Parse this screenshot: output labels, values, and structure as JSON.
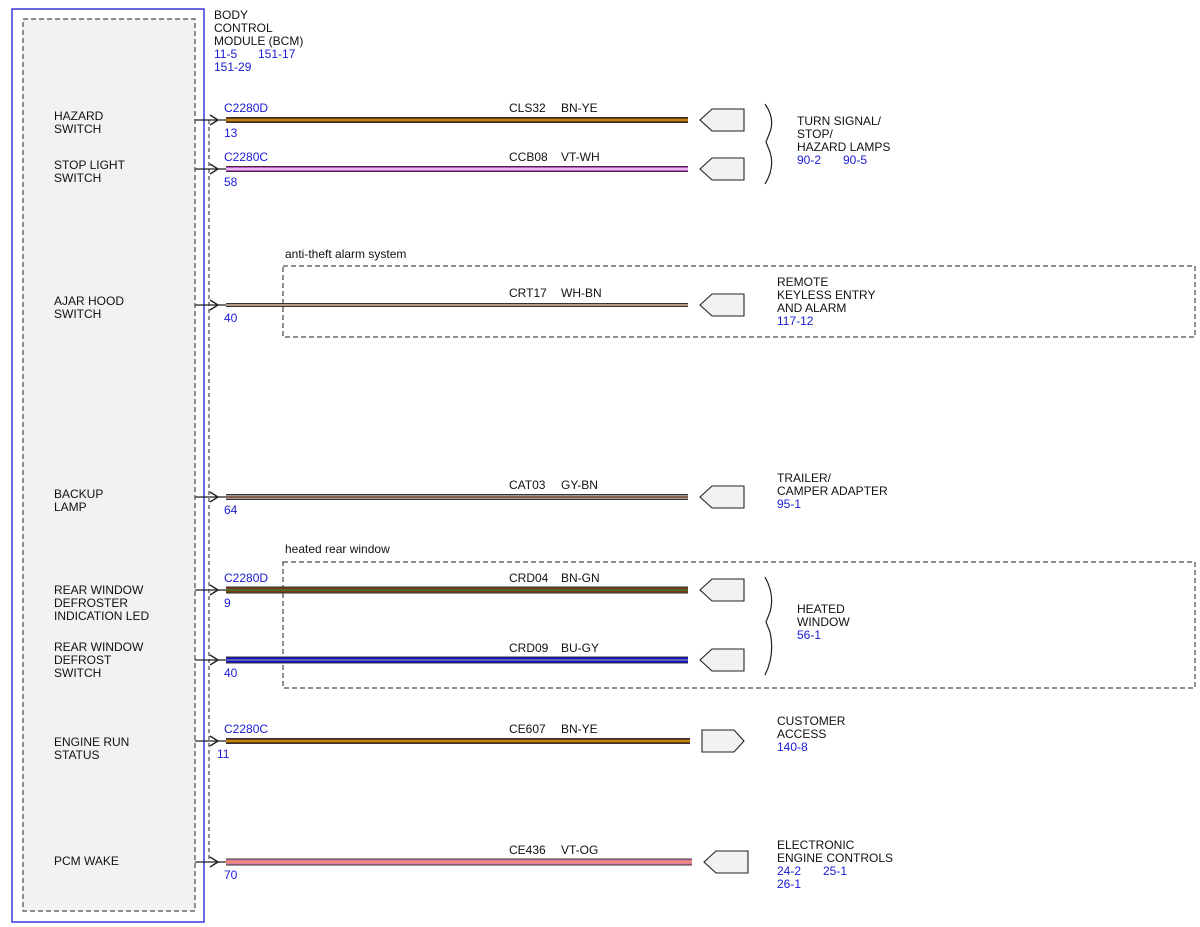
{
  "module": {
    "title_lines": [
      "BODY",
      "CONTROL",
      "MODULE (BCM)"
    ],
    "refs": [
      "11-5",
      "151-17",
      "151-29"
    ]
  },
  "switches": [
    {
      "id": "hazard",
      "lines": [
        "HAZARD",
        "SWITCH"
      ]
    },
    {
      "id": "stoplight",
      "lines": [
        "STOP LIGHT",
        "SWITCH"
      ]
    },
    {
      "id": "ajarhood",
      "lines": [
        "AJAR HOOD",
        "SWITCH"
      ]
    },
    {
      "id": "backup",
      "lines": [
        "BACKUP",
        "LAMP"
      ]
    },
    {
      "id": "defroster-led",
      "lines": [
        "REAR WINDOW",
        "DEFROSTER",
        "INDICATION LED"
      ]
    },
    {
      "id": "defrost-switch",
      "lines": [
        "REAR WINDOW",
        "DEFROST",
        "SWITCH"
      ]
    },
    {
      "id": "engine-run",
      "lines": [
        "ENGINE RUN",
        "STATUS"
      ]
    },
    {
      "id": "pcm-wake",
      "lines": [
        "PCM WAKE"
      ]
    }
  ],
  "wires": [
    {
      "connector": "C2280D",
      "pin": "13",
      "circuit": "CLS32",
      "color_code": "BN-YE",
      "colors": [
        "#7a3b1a",
        "#e8b800"
      ]
    },
    {
      "connector": "C2280C",
      "pin": "58",
      "circuit": "CCB08",
      "color_code": "VT-WH",
      "colors": [
        "#c94fd0",
        "#ffffff"
      ]
    },
    {
      "connector": "",
      "pin": "40",
      "circuit": "CRT17",
      "color_code": "WH-BN",
      "colors": [
        "#ffffff",
        "#8a5a3a"
      ]
    },
    {
      "connector": "",
      "pin": "64",
      "circuit": "CAT03",
      "color_code": "GY-BN",
      "colors": [
        "#9a9a9a",
        "#7a3b1a"
      ]
    },
    {
      "connector": "C2280D",
      "pin": "9",
      "circuit": "CRD04",
      "color_code": "BN-GN",
      "colors": [
        "#7a3b1a",
        "#2f8a2f"
      ]
    },
    {
      "connector": "",
      "pin": "40",
      "circuit": "CRD09",
      "color_code": "BU-GY",
      "colors": [
        "#1010c8",
        "#9a9a9a"
      ]
    },
    {
      "connector": "C2280C",
      "pin": "11",
      "circuit": "CE607",
      "color_code": "BN-YE",
      "colors": [
        "#7a3b1a",
        "#e8b800"
      ]
    },
    {
      "connector": "",
      "pin": "70",
      "circuit": "CE436",
      "color_code": "VT-OG",
      "colors": [
        "#e27ab0",
        "#f0a040"
      ]
    }
  ],
  "destinations": [
    {
      "id": "turn-signal",
      "lines": [
        "TURN SIGNAL/",
        "STOP/",
        "HAZARD LAMPS"
      ],
      "refs": [
        "90-2",
        "90-5"
      ]
    },
    {
      "id": "remote-keyless",
      "lines": [
        "REMOTE",
        "KEYLESS ENTRY",
        "AND ALARM"
      ],
      "refs": [
        "117-12"
      ]
    },
    {
      "id": "trailer",
      "lines": [
        "TRAILER/",
        "CAMPER ADAPTER"
      ],
      "refs": [
        "95-1"
      ]
    },
    {
      "id": "heated-window",
      "lines": [
        "HEATED",
        "WINDOW"
      ],
      "refs": [
        "56-1"
      ]
    },
    {
      "id": "customer-access",
      "lines": [
        "CUSTOMER",
        "ACCESS"
      ],
      "refs": [
        "140-8"
      ]
    },
    {
      "id": "electronic-engine",
      "lines": [
        "ELECTRONIC",
        "ENGINE CONTROLS"
      ],
      "refs": [
        "24-2",
        "25-1",
        "26-1"
      ]
    }
  ],
  "options": {
    "anti_theft": "anti-theft alarm system",
    "heated_rear": "heated rear window"
  },
  "colors": {
    "module_border": "#1a1ad6",
    "reference_text": "#1a1ad6",
    "module_fill": "#f2f2f2"
  }
}
